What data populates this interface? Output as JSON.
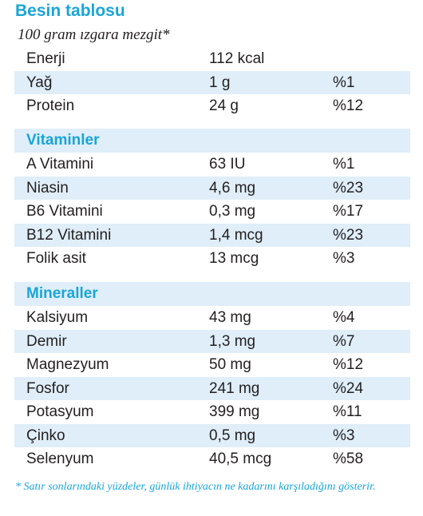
{
  "title": "Besin tablosu",
  "subtitle": "100 gram ızgara mezgit*",
  "main_rows": [
    {
      "name": "Enerji",
      "amount": "112 kcal",
      "percent": ""
    },
    {
      "name": "Yağ",
      "amount": "1 g",
      "percent": "%1"
    },
    {
      "name": "Protein",
      "amount": "24 g",
      "percent": "%12"
    }
  ],
  "vitamins": {
    "heading": "Vitaminler",
    "rows": [
      {
        "name": "A Vitamini",
        "amount": "63 IU",
        "percent": "%1"
      },
      {
        "name": "Niasin",
        "amount": "4,6 mg",
        "percent": "%23"
      },
      {
        "name": "B6 Vitamini",
        "amount": "0,3 mg",
        "percent": "%17"
      },
      {
        "name": "B12 Vitamini",
        "amount": "1,4 mcg",
        "percent": "%23"
      },
      {
        "name": "Folik asit",
        "amount": "13 mcg",
        "percent": "%3"
      }
    ]
  },
  "minerals": {
    "heading": "Mineraller",
    "rows": [
      {
        "name": "Kalsiyum",
        "amount": "43 mg",
        "percent": "%4"
      },
      {
        "name": "Demir",
        "amount": "1,3 mg",
        "percent": "%7"
      },
      {
        "name": "Magnezyum",
        "amount": "50 mg",
        "percent": "%12"
      },
      {
        "name": "Fosfor",
        "amount": "241 mg",
        "percent": "%24"
      },
      {
        "name": "Potasyum",
        "amount": "399 mg",
        "percent": "%11"
      },
      {
        "name": "Çinko",
        "amount": "0,5 mg",
        "percent": "%3"
      },
      {
        "name": "Selenyum",
        "amount": "40,5 mcg",
        "percent": "%58"
      }
    ]
  },
  "footnote": "* Satır sonlarındaki yüzdeler, günlük ihtiyacın ne kadarını karşıladığını gösterir.",
  "colors": {
    "accent": "#19a5d8",
    "shade": "#dfeef8",
    "text": "#231f20"
  }
}
